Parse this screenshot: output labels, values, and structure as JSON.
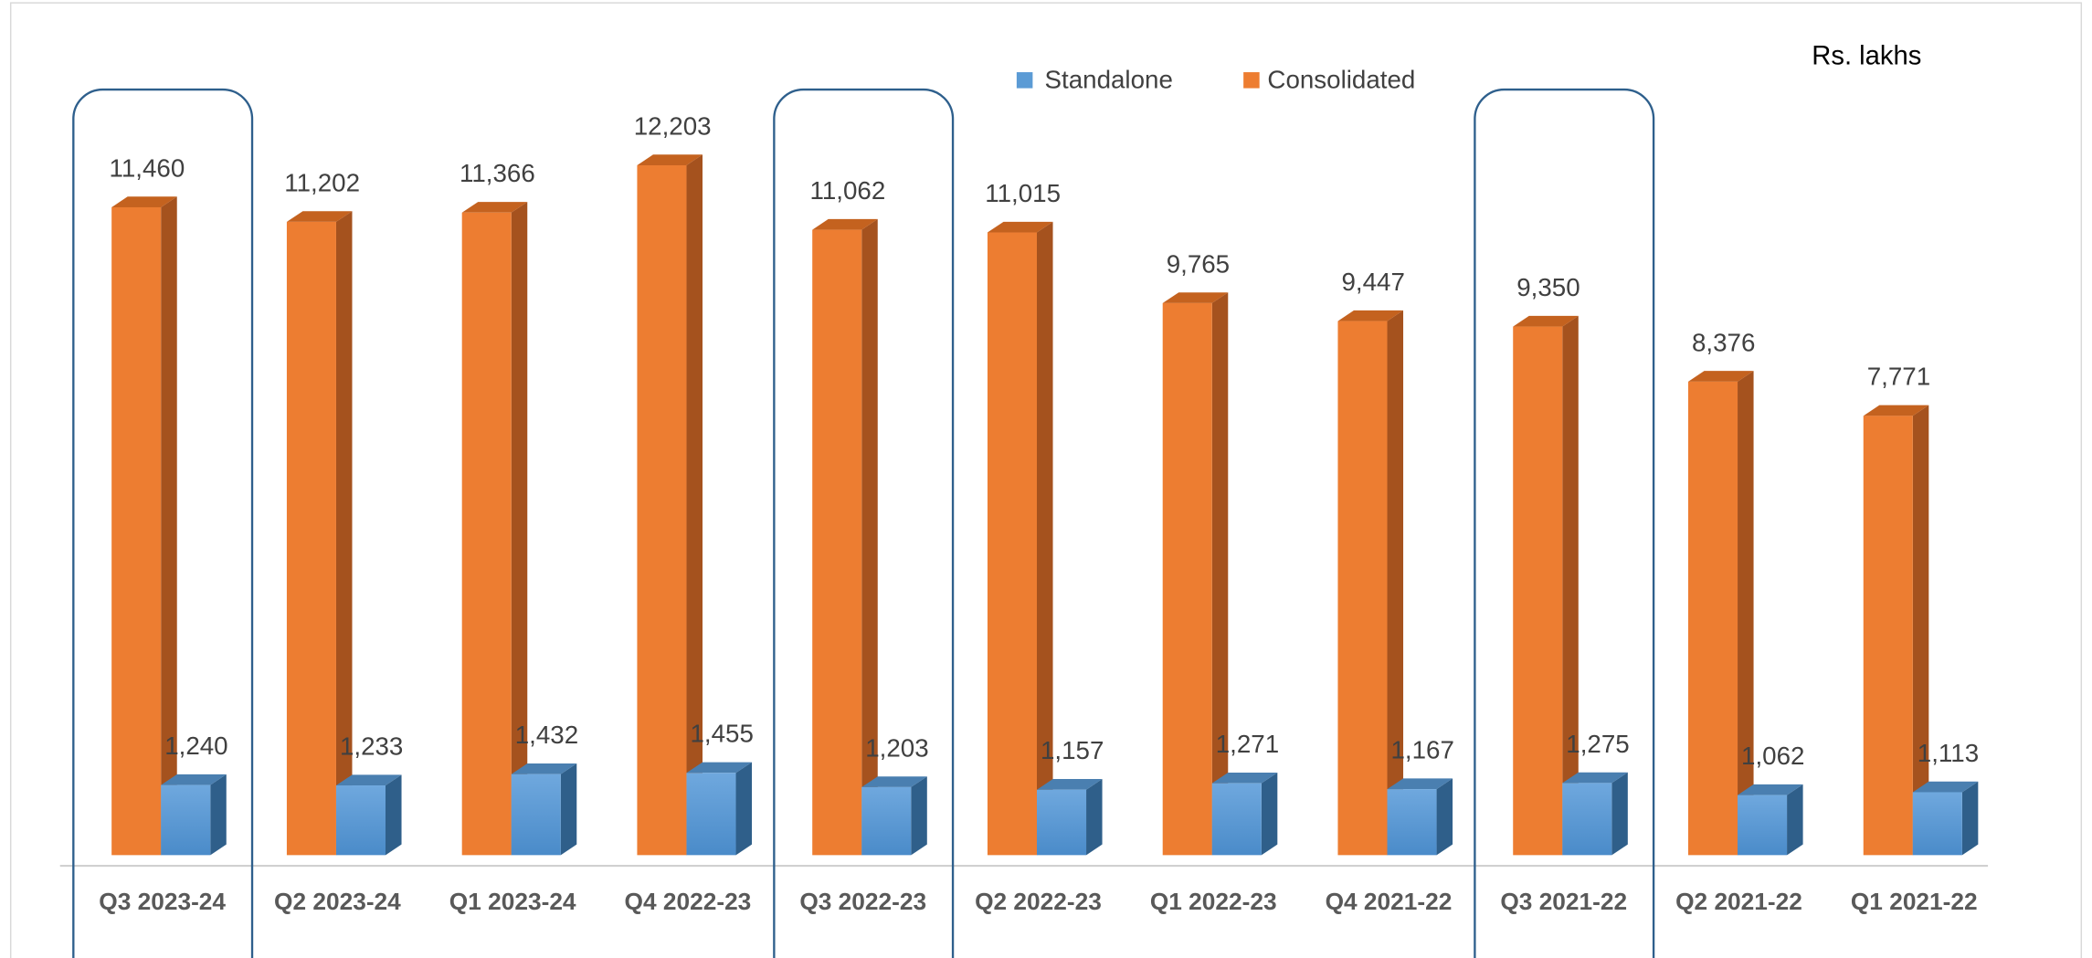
{
  "chart_data": {
    "type": "bar3d",
    "annotation": "Rs. lakhs",
    "categories": [
      "Q3 2023-24",
      "Q2 2023-24",
      "Q1 2023-24",
      "Q4 2022-23",
      "Q3 2022-23",
      "Q2 2022-23",
      "Q1 2022-23",
      "Q4 2021-22",
      "Q3 2021-22",
      "Q2 2021-22",
      "Q1 2021-22"
    ],
    "series": [
      {
        "name": "Standalone",
        "color": "#5b9bd5",
        "values": [
          1240,
          1233,
          1432,
          1455,
          1203,
          1157,
          1271,
          1167,
          1275,
          1062,
          1113
        ],
        "value_labels": [
          "1,240",
          "1,233",
          "1,432",
          "1,455",
          "1,203",
          "1,157",
          "1,271",
          "1,167",
          "1,275",
          "1,062",
          "1,113"
        ]
      },
      {
        "name": "Consolidated",
        "color": "#ed7d31",
        "values": [
          11460,
          11202,
          11366,
          12203,
          11062,
          11015,
          9765,
          9447,
          9350,
          8376,
          7771
        ],
        "value_labels": [
          "11,460",
          "11,202",
          "11,366",
          "12,203",
          "11,062",
          "11,015",
          "9,765",
          "9,447",
          "9,350",
          "8,376",
          "7,771"
        ]
      }
    ],
    "ylim": [
      0,
      13000
    ],
    "legend": "top"
  }
}
